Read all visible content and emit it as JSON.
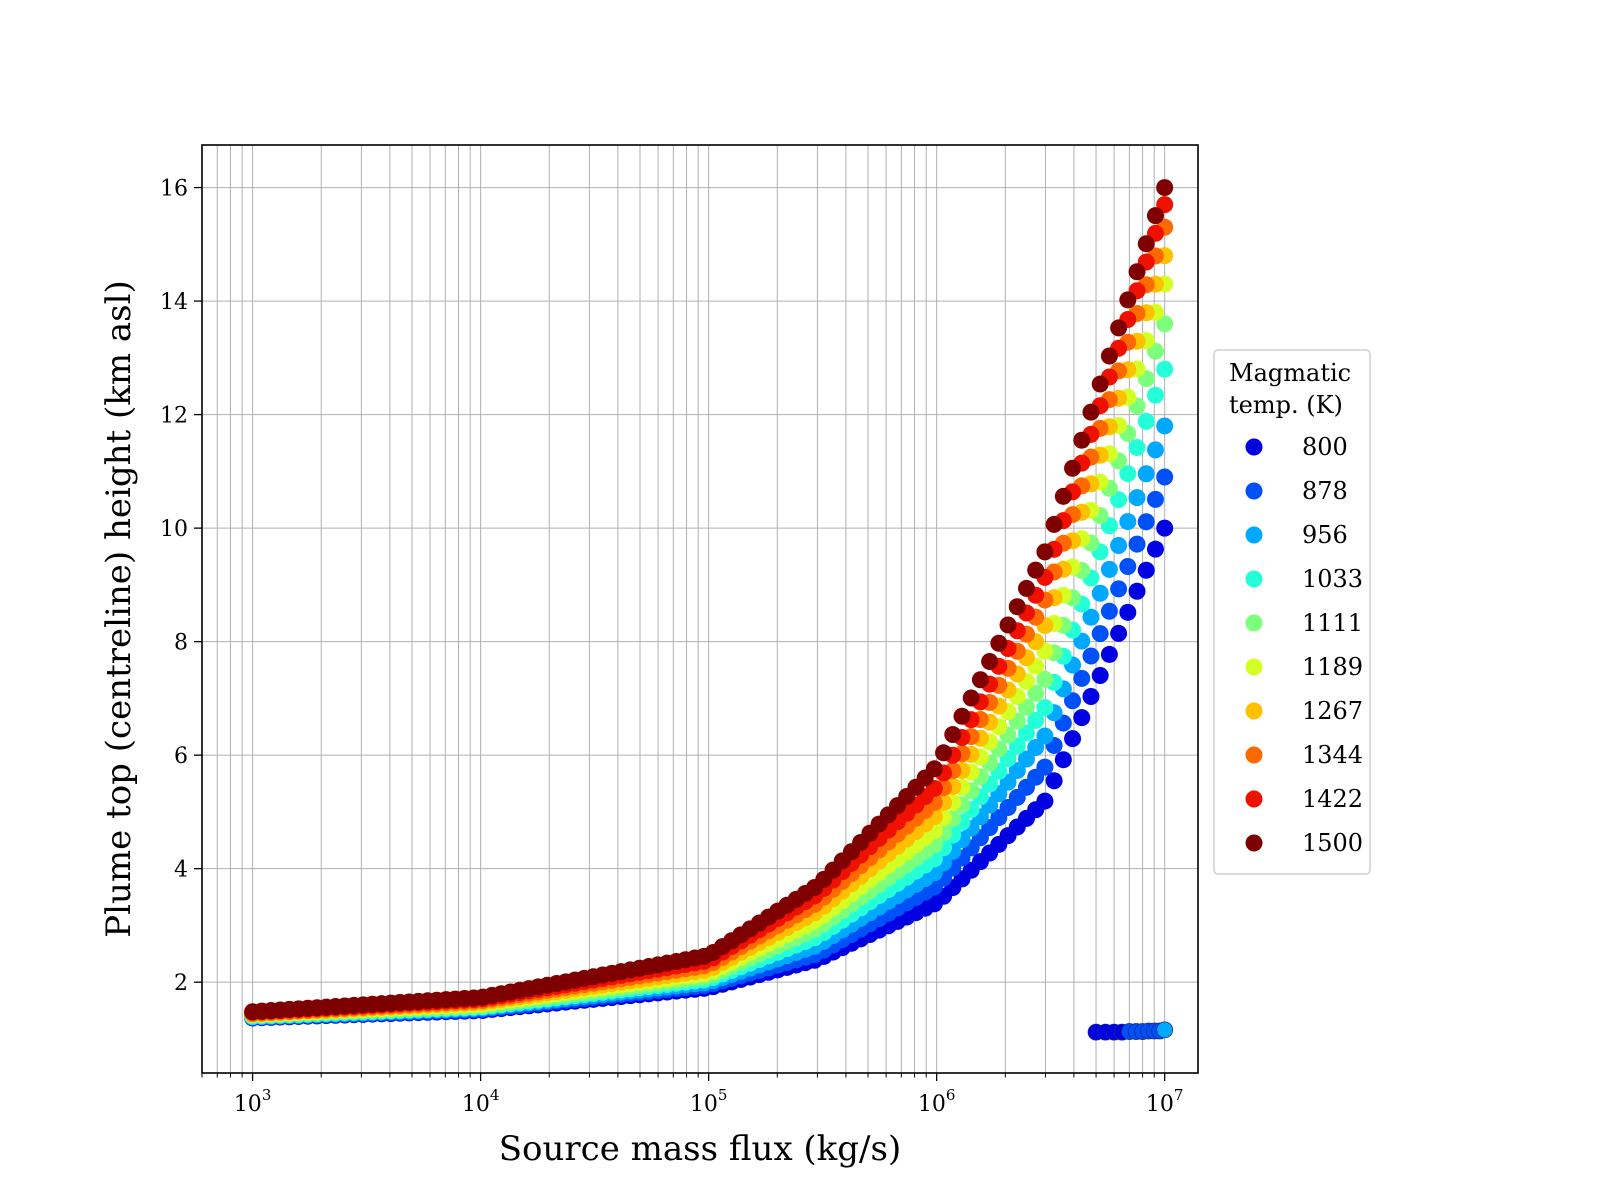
{
  "chart_data": {
    "type": "scatter",
    "title": "",
    "xlabel": "Source mass flux (kg/s)",
    "ylabel": "Plume top (centreline) height (km asl)",
    "xscale": "log",
    "xlim": [
      600,
      14000000
    ],
    "ylim": [
      0.4,
      16.75
    ],
    "x_ticks": [
      {
        "value": 1000,
        "base": "10",
        "exp": "3"
      },
      {
        "value": 10000,
        "base": "10",
        "exp": "4"
      },
      {
        "value": 100000,
        "base": "10",
        "exp": "5"
      },
      {
        "value": 1000000,
        "base": "10",
        "exp": "6"
      },
      {
        "value": 10000000,
        "base": "10",
        "exp": "7"
      }
    ],
    "y_ticks": [
      "2",
      "4",
      "6",
      "8",
      "10",
      "12",
      "14",
      "16"
    ],
    "grid": true,
    "legend": {
      "title_lines": [
        "Magmatic",
        "temp. (K)"
      ],
      "placement": "outside-right"
    },
    "series": [
      {
        "name": "800",
        "color": "#0000e0",
        "x": [
          1000,
          10000,
          100000,
          300000,
          1000000,
          3000000,
          10000000
        ],
        "y": [
          1.37,
          1.5,
          1.9,
          2.4,
          3.4,
          5.2,
          10.0
        ]
      },
      {
        "name": "878",
        "color": "#0050f8",
        "x": [
          1000,
          10000,
          100000,
          300000,
          1000000,
          3000000,
          10000000
        ],
        "y": [
          1.38,
          1.52,
          1.95,
          2.5,
          3.7,
          5.8,
          10.9
        ]
      },
      {
        "name": "956",
        "color": "#00a8ff",
        "x": [
          1000,
          10000,
          100000,
          300000,
          1000000,
          3000000,
          10000000
        ],
        "y": [
          1.39,
          1.54,
          2.0,
          2.65,
          3.95,
          6.35,
          11.8
        ]
      },
      {
        "name": "1033",
        "color": "#24ffd8",
        "x": [
          1000,
          10000,
          100000,
          300000,
          1000000,
          3000000,
          10000000
        ],
        "y": [
          1.4,
          1.56,
          2.05,
          2.8,
          4.2,
          6.85,
          12.8
        ]
      },
      {
        "name": "1111",
        "color": "#7cff7c",
        "x": [
          1000,
          10000,
          100000,
          300000,
          1000000,
          3000000,
          10000000
        ],
        "y": [
          1.42,
          1.58,
          2.1,
          2.95,
          4.45,
          7.35,
          13.6
        ]
      },
      {
        "name": "1189",
        "color": "#d4ff24",
        "x": [
          1000,
          10000,
          100000,
          300000,
          1000000,
          3000000,
          10000000
        ],
        "y": [
          1.43,
          1.61,
          2.16,
          3.1,
          4.7,
          7.85,
          14.3
        ]
      },
      {
        "name": "1267",
        "color": "#ffc000",
        "x": [
          1000,
          10000,
          100000,
          300000,
          1000000,
          3000000,
          10000000
        ],
        "y": [
          1.44,
          1.64,
          2.22,
          3.25,
          4.95,
          8.3,
          14.8
        ]
      },
      {
        "name": "1344",
        "color": "#ff6a00",
        "x": [
          1000,
          10000,
          100000,
          300000,
          1000000,
          3000000,
          10000000
        ],
        "y": [
          1.45,
          1.67,
          2.3,
          3.4,
          5.2,
          8.75,
          15.3
        ]
      },
      {
        "name": "1422",
        "color": "#f01000",
        "x": [
          1000,
          10000,
          100000,
          300000,
          1000000,
          3000000,
          10000000
        ],
        "y": [
          1.47,
          1.7,
          2.38,
          3.55,
          5.45,
          9.15,
          15.7
        ]
      },
      {
        "name": "1500",
        "color": "#7f0000",
        "x": [
          1000,
          10000,
          100000,
          300000,
          1000000,
          3000000,
          10000000
        ],
        "y": [
          1.48,
          1.73,
          2.47,
          3.7,
          5.8,
          9.6,
          16.0
        ]
      }
    ],
    "outlier_points": [
      {
        "color": "#0000e0",
        "x": [
          5000000,
          5500000,
          6000000,
          6500000
        ],
        "y": [
          1.12,
          1.12,
          1.12,
          1.12
        ]
      },
      {
        "color": "#0050f8",
        "x": [
          7000000,
          7500000,
          8000000,
          8500000,
          9000000,
          9500000
        ],
        "y": [
          1.13,
          1.13,
          1.13,
          1.14,
          1.14,
          1.14
        ]
      },
      {
        "color": "#00a8ff",
        "x": [
          10000000
        ],
        "y": [
          1.16
        ]
      }
    ]
  }
}
